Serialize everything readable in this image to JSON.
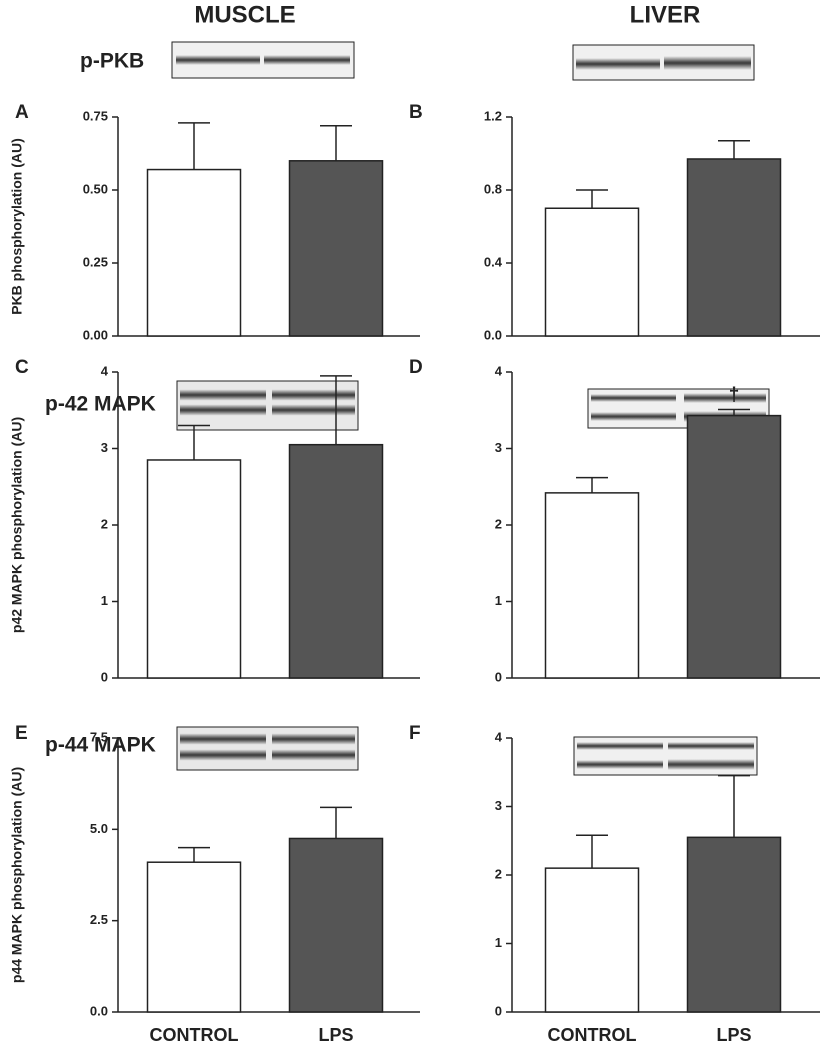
{
  "column_headers": [
    "MUSCLE",
    "LIVER"
  ],
  "blot_labels": [
    "p-PKB",
    "p-42 MAPK",
    "p-44 MAPK"
  ],
  "chart_data": [
    {
      "type": "bar",
      "panel": "A",
      "ylabel": "PKB phosphorylation (AU)",
      "categories": [
        null,
        null
      ],
      "values": [
        0.57,
        0.6
      ],
      "errors": [
        0.16,
        0.12
      ],
      "colors": [
        "#ffffff",
        "#555555"
      ],
      "ylim": [
        0,
        0.75
      ],
      "yticks": [
        {
          "value": 0,
          "label": "0.00"
        },
        0.25,
        {
          "value": 0.5,
          "label": "0.50"
        },
        0.75
      ]
    },
    {
      "type": "bar",
      "panel": "B",
      "categories": [
        null,
        null
      ],
      "values": [
        0.7,
        0.97
      ],
      "errors": [
        0.1,
        0.1
      ],
      "colors": [
        "#ffffff",
        "#555555"
      ],
      "ylim": [
        0,
        1.2
      ],
      "yticks": [
        {
          "value": 0,
          "label": "0.0"
        },
        0.4,
        0.8,
        1.2
      ]
    },
    {
      "type": "bar",
      "panel": "C",
      "ylabel": "p42 MAPK phosphorylation (AU)",
      "categories": [
        null,
        null
      ],
      "values": [
        2.85,
        3.05
      ],
      "errors": [
        0.45,
        0.9
      ],
      "colors": [
        "#ffffff",
        "#555555"
      ],
      "ylim": [
        0,
        4
      ],
      "yticks": [
        0,
        1,
        2,
        3,
        4
      ]
    },
    {
      "type": "bar",
      "panel": "D",
      "categories": [
        null,
        null
      ],
      "values": [
        2.42,
        3.43
      ],
      "errors": [
        0.2,
        0.08
      ],
      "colors": [
        "#ffffff",
        "#555555"
      ],
      "annotation": "†",
      "ylim": [
        0,
        4
      ],
      "yticks": [
        0,
        1,
        2,
        3,
        4
      ]
    },
    {
      "type": "bar",
      "panel": "E",
      "ylabel": "p44 MAPK phosphorylation (AU)",
      "categories": [
        "CONTROL",
        "LPS"
      ],
      "values": [
        4.1,
        4.75
      ],
      "errors": [
        0.4,
        0.85
      ],
      "colors": [
        "#ffffff",
        "#555555"
      ],
      "ylim": [
        0,
        7.5
      ],
      "yticks": [
        {
          "value": 0,
          "label": "0.0"
        },
        2.5,
        {
          "value": 5,
          "label": "5.0"
        },
        7.5
      ]
    },
    {
      "type": "bar",
      "panel": "F",
      "categories": [
        "CONTROL",
        "LPS"
      ],
      "values": [
        2.1,
        2.55
      ],
      "errors": [
        0.48,
        0.9
      ],
      "colors": [
        "#ffffff",
        "#555555"
      ],
      "ylim": [
        0,
        4
      ],
      "yticks": [
        0,
        1,
        2,
        3,
        4
      ]
    }
  ]
}
